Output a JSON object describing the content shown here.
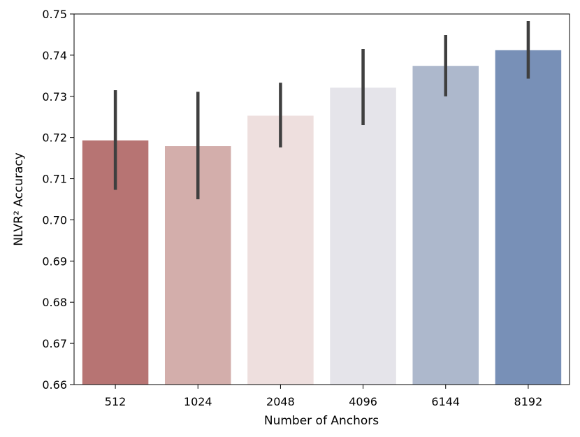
{
  "chart_data": {
    "type": "bar",
    "title": "",
    "xlabel": "Number of Anchors",
    "ylabel": "NLVR² Accuracy",
    "categories": [
      "512",
      "1024",
      "2048",
      "4096",
      "6144",
      "8192"
    ],
    "values": [
      0.7193,
      0.7179,
      0.7253,
      0.7321,
      0.7374,
      0.7412
    ],
    "error_bars": [
      {
        "low": 0.7073,
        "high": 0.7315
      },
      {
        "low": 0.705,
        "high": 0.7311
      },
      {
        "low": 0.7176,
        "high": 0.7333
      },
      {
        "low": 0.723,
        "high": 0.7415
      },
      {
        "low": 0.73,
        "high": 0.7449
      },
      {
        "low": 0.7343,
        "high": 0.7483
      }
    ],
    "colors": [
      "#b77473",
      "#d3aeab",
      "#eedfde",
      "#e5e4ea",
      "#adb8cc",
      "#7890b7"
    ],
    "error_bar_color": "#3f3f3f",
    "ylim": [
      0.66,
      0.75
    ],
    "yticks": [
      "0.66",
      "0.67",
      "0.68",
      "0.69",
      "0.70",
      "0.71",
      "0.72",
      "0.73",
      "0.74",
      "0.75"
    ],
    "grid": false,
    "legend": "none"
  }
}
